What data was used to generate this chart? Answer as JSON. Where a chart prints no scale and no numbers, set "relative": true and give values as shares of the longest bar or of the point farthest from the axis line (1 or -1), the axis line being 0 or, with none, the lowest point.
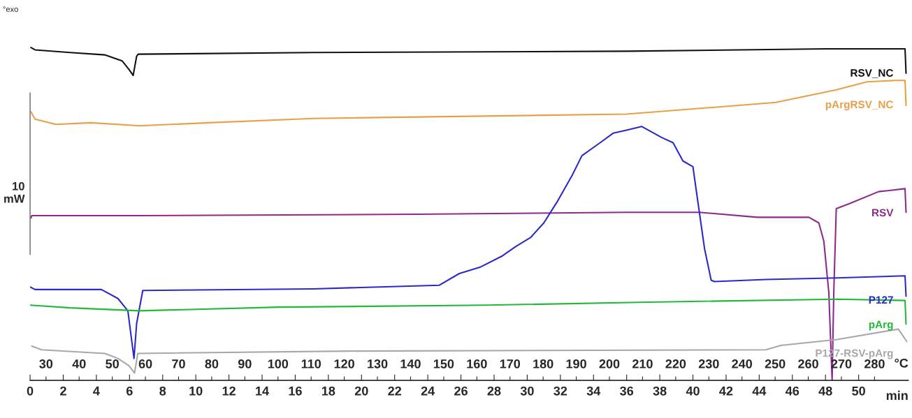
{
  "chart_data": {
    "type": "line",
    "relative": true,
    "xlabel": "min",
    "x2label": "°C",
    "xlim": [
      0,
      53
    ],
    "xticks": [
      0,
      2,
      4,
      6,
      8,
      10,
      12,
      14,
      16,
      18,
      20,
      22,
      24,
      26,
      28,
      30,
      32,
      34,
      36,
      38,
      40,
      42,
      44,
      46,
      48,
      50
    ],
    "x2lim": [
      25.2,
      290.2
    ],
    "x2ticks": [
      30,
      40,
      50,
      60,
      70,
      80,
      90,
      100,
      110,
      120,
      130,
      140,
      150,
      160,
      170,
      180,
      190,
      200,
      210,
      220,
      230,
      240,
      250,
      260,
      270,
      280
    ],
    "annotations": [
      "°exo",
      "10 mW"
    ],
    "grid": false,
    "marker": "none",
    "line_style": "solid",
    "series": [
      {
        "name": "RSV_NC",
        "color": "#111111",
        "x": [
          0.05,
          0.3,
          2.4,
          4.5,
          5.55,
          5.97,
          6.22,
          6.43,
          6.52,
          17.1,
          36.0,
          48.0,
          52.8,
          52.86
        ],
        "values": [
          1.0,
          0.993,
          0.985,
          0.978,
          0.96,
          0.934,
          0.916,
          0.974,
          0.98,
          0.985,
          0.989,
          0.996,
          0.996,
          0.923
        ]
      },
      {
        "name": "pArgRSV_NC",
        "color": "#e8a048",
        "x": [
          0.05,
          0.3,
          1.56,
          3.66,
          6.6,
          10.8,
          17.1,
          36.0,
          45.0,
          48.65,
          50.5,
          52.2,
          52.8,
          52.86
        ],
        "values": [
          0.807,
          0.785,
          0.769,
          0.774,
          0.765,
          0.774,
          0.787,
          0.8,
          0.835,
          0.873,
          0.897,
          0.901,
          0.901,
          0.826
        ]
      },
      {
        "name": "RSV",
        "color": "#8e2a8e",
        "x": [
          0.05,
          0.1,
          6.6,
          23.4,
          36.0,
          39.0,
          40.4,
          43.9,
          47.0,
          47.6,
          47.9,
          48.2,
          48.4,
          48.5,
          48.65,
          49.5,
          51.2,
          52.8,
          52.86
        ],
        "values": [
          0.488,
          0.495,
          0.495,
          0.499,
          0.505,
          0.505,
          0.505,
          0.49,
          0.49,
          0.473,
          0.418,
          0.264,
          0.0,
          0.264,
          0.516,
          0.532,
          0.567,
          0.576,
          0.505
        ]
      },
      {
        "name": "P127",
        "color": "#2a2ac8",
        "x": [
          0.0,
          0.3,
          4.3,
          5.3,
          5.9,
          6.27,
          6.43,
          6.8,
          17.1,
          24.7,
          25.9,
          27.2,
          28.5,
          29.3,
          30.2,
          31.0,
          31.8,
          32.7,
          33.3,
          34.4,
          35.2,
          36.0,
          36.9,
          38.1,
          38.8,
          39.4,
          40.0,
          40.2,
          40.7,
          41.1,
          41.3,
          44.4,
          48.7,
          52.8,
          52.86
        ],
        "values": [
          0.281,
          0.273,
          0.273,
          0.246,
          0.209,
          0.066,
          0.171,
          0.27,
          0.275,
          0.286,
          0.321,
          0.341,
          0.374,
          0.402,
          0.429,
          0.473,
          0.536,
          0.615,
          0.675,
          0.714,
          0.743,
          0.752,
          0.763,
          0.73,
          0.714,
          0.659,
          0.642,
          0.571,
          0.396,
          0.301,
          0.297,
          0.303,
          0.308,
          0.314,
          0.253
        ]
      },
      {
        "name": "pArg",
        "color": "#22b83a",
        "x": [
          0.0,
          2.4,
          6.6,
          15.0,
          27.6,
          37.3,
          48.7,
          52.8,
          52.86
        ],
        "values": [
          0.226,
          0.218,
          0.209,
          0.22,
          0.226,
          0.235,
          0.244,
          0.24,
          0.169
        ]
      },
      {
        "name": "P127-RSV-pArg",
        "color": "#a8a8a8",
        "x": [
          0.1,
          0.7,
          4.5,
          5.3,
          5.97,
          6.3,
          6.5,
          19.2,
          44.4,
          45.3,
          48.7,
          52.4,
          52.9
        ],
        "values": [
          0.103,
          0.092,
          0.081,
          0.066,
          0.044,
          0.022,
          0.081,
          0.088,
          0.092,
          0.105,
          0.123,
          0.154,
          0.117
        ]
      }
    ]
  }
}
